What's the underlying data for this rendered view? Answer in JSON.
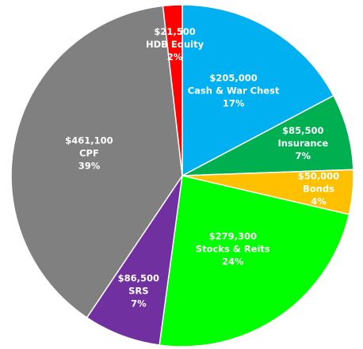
{
  "chart_data": {
    "type": "pie",
    "slices": [
      {
        "value_label": "$205,000",
        "name": "Cash & War Chest",
        "pct_label": "17%",
        "value": 205000,
        "color": "#00B0F0",
        "label_color": "#ffffff"
      },
      {
        "value_label": "$85,500",
        "name": "Insurance",
        "pct_label": "7%",
        "value": 85500,
        "color": "#00B050",
        "label_color": "#ffffff"
      },
      {
        "value_label": "$50,000",
        "name": "Bonds",
        "pct_label": "4%",
        "value": 50000,
        "color": "#FFC000",
        "label_color": "#ffffff"
      },
      {
        "value_label": "$279,300",
        "name": "Stocks & Reits",
        "pct_label": "24%",
        "value": 279300,
        "color": "#00FF00",
        "label_color": "#ffffff"
      },
      {
        "value_label": "$86,500",
        "name": "SRS",
        "pct_label": "7%",
        "value": 86500,
        "color": "#7030A0",
        "label_color": "#ffffff"
      },
      {
        "value_label": "$461,100",
        "name": "CPF",
        "pct_label": "39%",
        "value": 461100,
        "color": "#808080",
        "label_color": "#ffffff"
      },
      {
        "value_label": "$21,500",
        "name": "HDB Equity",
        "pct_label": "2%",
        "value": 21500,
        "color": "#FF0000",
        "label_color": "#ffffff"
      }
    ],
    "start": "12 o'clock",
    "direction": "clockwise"
  }
}
